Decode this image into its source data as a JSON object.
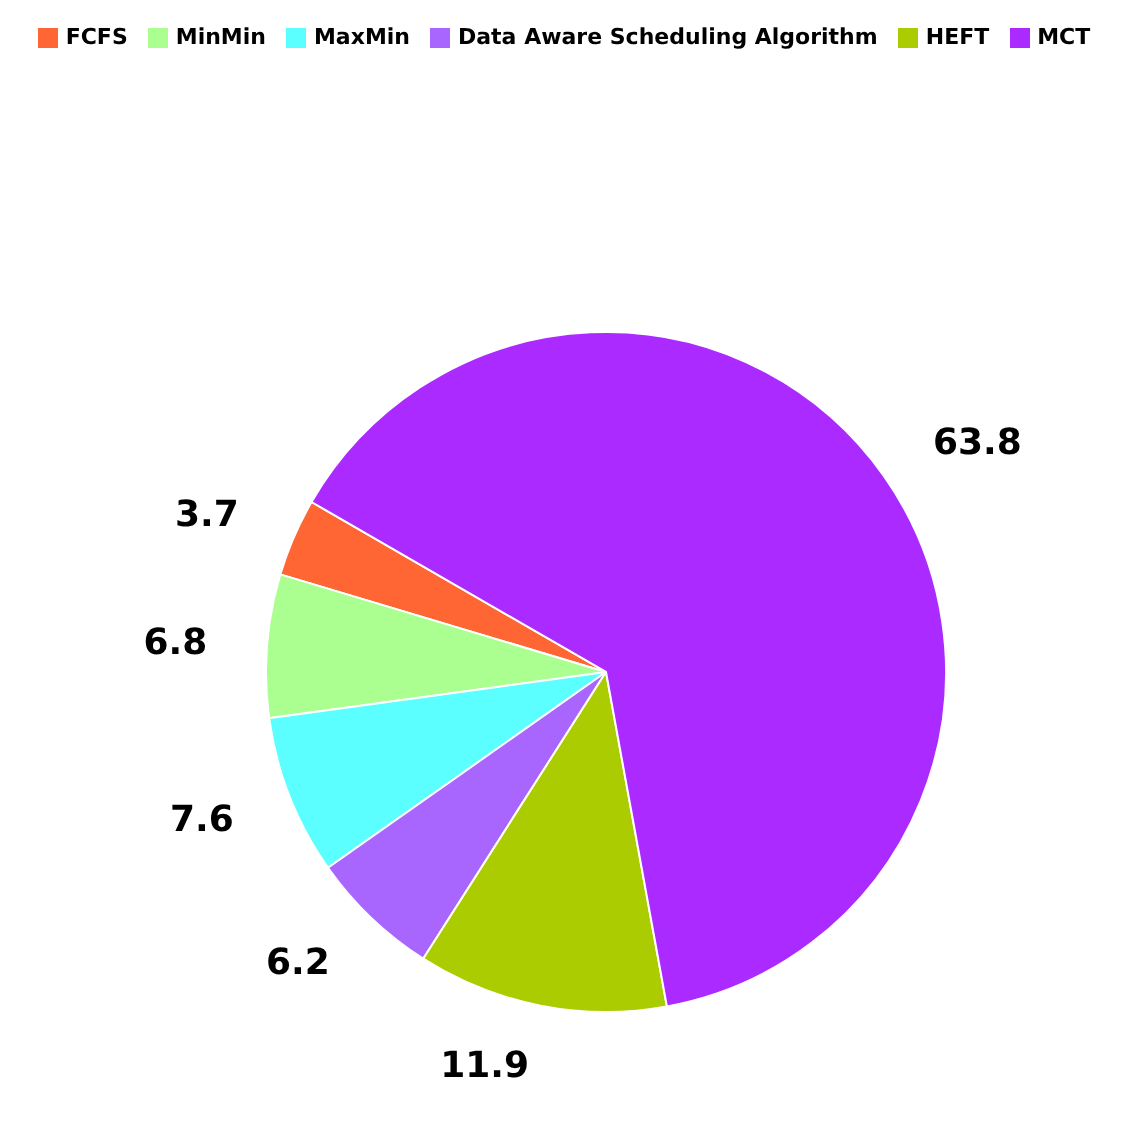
{
  "chart_data": {
    "type": "pie",
    "categories": [
      "FCFS",
      "MinMin",
      "MaxMin",
      "Data Aware Scheduling Algorithm",
      "HEFT",
      "MCT"
    ],
    "values": [
      3.7,
      6.8,
      7.6,
      6.2,
      11.9,
      63.8
    ],
    "colors": [
      "#ff6633",
      "#aaff90",
      "#5cffff",
      "#a866ff",
      "#aacc00",
      "#aa2aff"
    ],
    "data_labels": true,
    "legend": "top"
  }
}
